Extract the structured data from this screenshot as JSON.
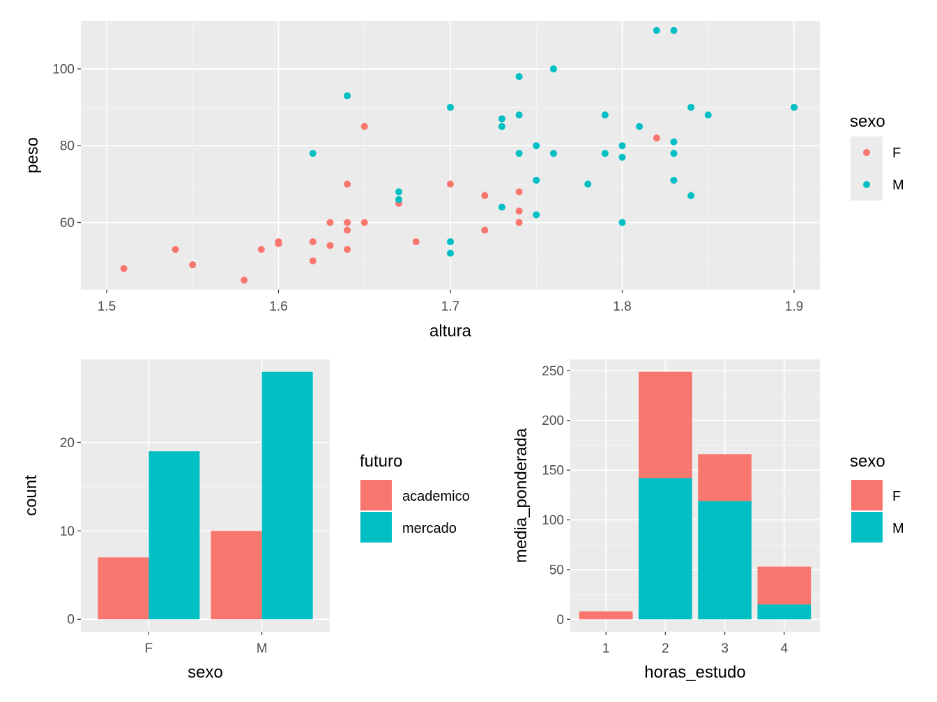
{
  "colors": {
    "panel_bg": "#EBEBEB",
    "grid_major": "#FFFFFF",
    "tick": "#333333",
    "F": "#F8766D",
    "M": "#00BFC4"
  },
  "chart_data": [
    {
      "type": "scatter",
      "xlabel": "altura",
      "ylabel": "peso",
      "xlim": [
        1.485,
        1.915
      ],
      "ylim": [
        42.5,
        112.5
      ],
      "x_ticks": [
        1.5,
        1.6,
        1.7,
        1.8,
        1.9
      ],
      "x_tick_labels": [
        "1.5",
        "1.6",
        "1.7",
        "1.8",
        "1.9"
      ],
      "y_ticks": [
        60,
        80,
        100
      ],
      "y_tick_labels": [
        "60",
        "80",
        "100"
      ],
      "legend": {
        "title": "sexo",
        "position": "right",
        "entries": [
          "F",
          "M"
        ]
      },
      "grid": true,
      "series": [
        {
          "name": "F",
          "color": "#F8766D",
          "points": [
            [
              1.51,
              48
            ],
            [
              1.54,
              53
            ],
            [
              1.55,
              49
            ],
            [
              1.58,
              45
            ],
            [
              1.59,
              53
            ],
            [
              1.6,
              55
            ],
            [
              1.6,
              54.5
            ],
            [
              1.62,
              55
            ],
            [
              1.62,
              50
            ],
            [
              1.63,
              60
            ],
            [
              1.63,
              54
            ],
            [
              1.64,
              70
            ],
            [
              1.64,
              60
            ],
            [
              1.64,
              58
            ],
            [
              1.64,
              53
            ],
            [
              1.65,
              85
            ],
            [
              1.65,
              60
            ],
            [
              1.67,
              65
            ],
            [
              1.68,
              55
            ],
            [
              1.7,
              70
            ],
            [
              1.72,
              67
            ],
            [
              1.72,
              58
            ],
            [
              1.74,
              68
            ],
            [
              1.74,
              63
            ],
            [
              1.74,
              60
            ],
            [
              1.82,
              82
            ]
          ]
        },
        {
          "name": "M",
          "color": "#00BFC4",
          "points": [
            [
              1.62,
              78
            ],
            [
              1.64,
              93
            ],
            [
              1.67,
              68
            ],
            [
              1.67,
              66
            ],
            [
              1.7,
              90
            ],
            [
              1.7,
              55
            ],
            [
              1.7,
              52
            ],
            [
              1.73,
              87
            ],
            [
              1.73,
              85
            ],
            [
              1.73,
              64
            ],
            [
              1.74,
              98
            ],
            [
              1.74,
              88
            ],
            [
              1.74,
              78
            ],
            [
              1.75,
              80
            ],
            [
              1.75,
              71
            ],
            [
              1.75,
              62
            ],
            [
              1.76,
              100
            ],
            [
              1.76,
              78
            ],
            [
              1.78,
              70
            ],
            [
              1.79,
              88
            ],
            [
              1.79,
              78
            ],
            [
              1.8,
              80
            ],
            [
              1.8,
              77
            ],
            [
              1.8,
              60
            ],
            [
              1.81,
              85
            ],
            [
              1.82,
              110
            ],
            [
              1.83,
              110
            ],
            [
              1.83,
              81
            ],
            [
              1.83,
              78
            ],
            [
              1.83,
              71
            ],
            [
              1.84,
              90
            ],
            [
              1.84,
              67
            ],
            [
              1.85,
              88
            ],
            [
              1.9,
              90
            ]
          ]
        }
      ]
    },
    {
      "type": "bar",
      "xlabel": "sexo",
      "ylabel": "count",
      "categories": [
        "F",
        "M"
      ],
      "ylim": [
        -1.4,
        29.4
      ],
      "y_ticks": [
        0,
        10,
        20
      ],
      "y_tick_labels": [
        "0",
        "10",
        "20"
      ],
      "legend": {
        "title": "futuro",
        "position": "right",
        "entries": [
          "academico",
          "mercado"
        ]
      },
      "grid": true,
      "series": [
        {
          "name": "academico",
          "color": "#F8766D",
          "values": [
            7,
            10
          ]
        },
        {
          "name": "mercado",
          "color": "#00BFC4",
          "values": [
            19,
            28
          ]
        }
      ]
    },
    {
      "type": "bar",
      "stacked": true,
      "xlabel": "horas_estudo",
      "ylabel": "media_ponderada",
      "categories": [
        "1",
        "2",
        "3",
        "4"
      ],
      "ylim": [
        -12.4,
        261.4
      ],
      "y_ticks": [
        0,
        50,
        100,
        150,
        200,
        250
      ],
      "y_tick_labels": [
        "0",
        "50",
        "100",
        "150",
        "200",
        "250"
      ],
      "legend": {
        "title": "sexo",
        "position": "right",
        "entries": [
          "F",
          "M"
        ]
      },
      "grid": true,
      "series": [
        {
          "name": "M",
          "color": "#00BFC4",
          "values": [
            0,
            142,
            119,
            15
          ]
        },
        {
          "name": "F",
          "color": "#F8766D",
          "values": [
            8,
            107,
            47,
            38
          ]
        }
      ]
    }
  ]
}
